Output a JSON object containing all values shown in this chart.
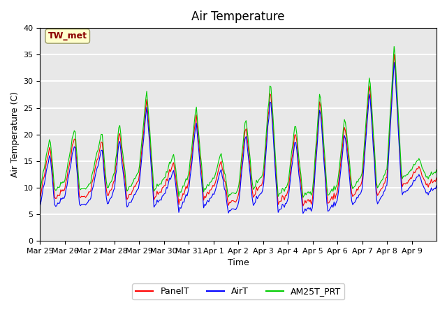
{
  "title": "Air Temperature",
  "ylabel": "Air Temperature (C)",
  "xlabel": "Time",
  "annotation": "TW_met",
  "annotation_color": "#8B0000",
  "annotation_bg": "#FFFFCC",
  "annotation_border": "#999966",
  "ylim": [
    0,
    40
  ],
  "yticks": [
    0,
    5,
    10,
    15,
    20,
    25,
    30,
    35,
    40
  ],
  "x_labels": [
    "Mar 25",
    "Mar 26",
    "Mar 27",
    "Mar 28",
    "Mar 29",
    "Mar 30",
    "Mar 31",
    "Apr 1",
    "Apr 2",
    "Apr 3",
    "Apr 4",
    "Apr 5",
    "Apr 6",
    "Apr 7",
    "Apr 8",
    "Apr 9"
  ],
  "series_colors": {
    "PanelT": "#FF0000",
    "AirT": "#0000FF",
    "AM25T_PRT": "#00CC00"
  },
  "background_color": "#E8E8E8",
  "grid_color": "#FFFFFF",
  "title_fontsize": 12,
  "label_fontsize": 9,
  "tick_fontsize": 8
}
